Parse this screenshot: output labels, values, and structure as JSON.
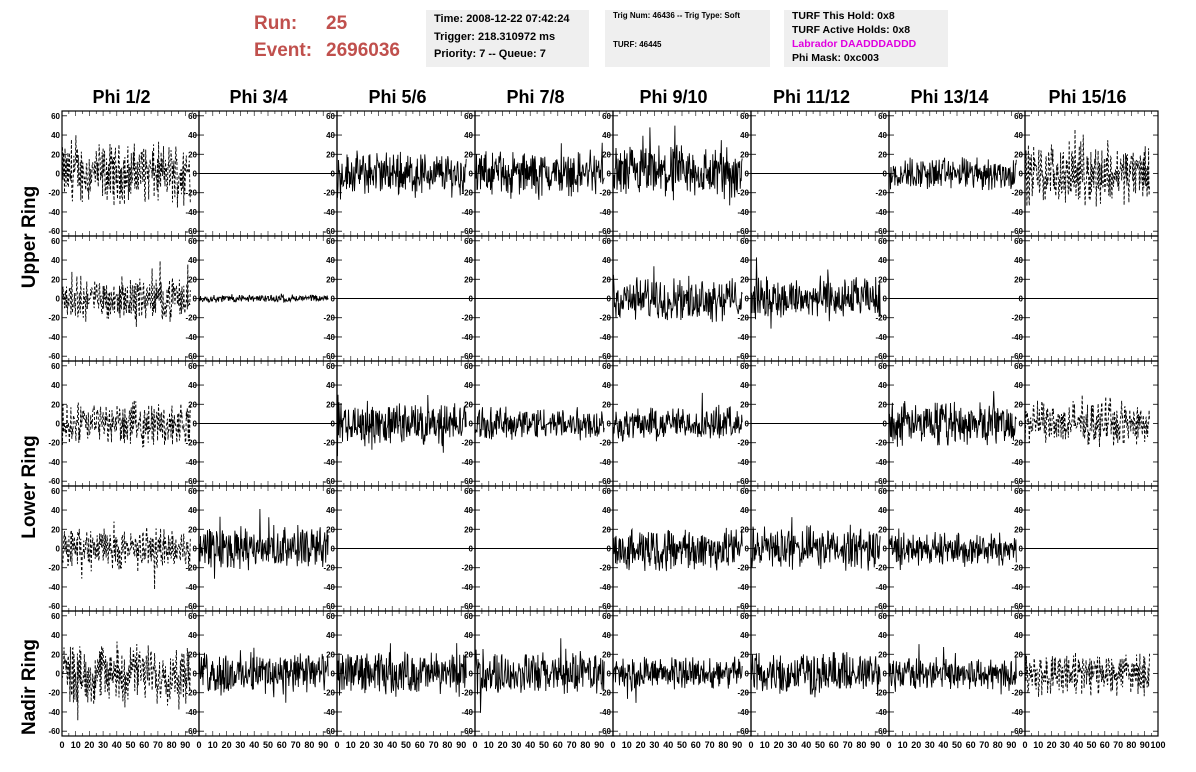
{
  "header": {
    "run_label": "Run:",
    "run_value": "25",
    "event_label": "Event:",
    "event_value": "2696036"
  },
  "info_box_1": {
    "time": "Time: 2008-12-22 07:42:24",
    "trigger": "Trigger: 218.310972 ms",
    "priority": "Priority: 7 -- Queue: 7"
  },
  "info_box_2": {
    "trig": "Trig Num: 46436 -- Trig Type: Soft",
    "turf": "TURF: 46445"
  },
  "info_box_3": {
    "hold": "TURF This Hold: 0x8",
    "active": "TURF Active Holds: 0x8",
    "labrador": "Labrador DAADDDADDD",
    "mask": "Phi Mask: 0xc003",
    "labrador_color": "#e000e0"
  },
  "columns": [
    "Phi 1/2",
    "Phi 3/4",
    "Phi 5/6",
    "Phi 7/8",
    "Phi 9/10",
    "Phi 11/12",
    "Phi 13/14",
    "Phi 15/16"
  ],
  "rings": [
    "Upper Ring",
    "Lower Ring",
    "Nadir Ring"
  ],
  "chart_data": {
    "type": "line",
    "layout": "grid of 5 rows x 8 columns of waveform panels",
    "xlim": [
      0,
      100
    ],
    "ylim": [
      -65,
      65
    ],
    "x_tick_labels": [
      "0",
      "10",
      "20",
      "30",
      "40",
      "50",
      "60",
      "70",
      "80",
      "90",
      "100"
    ],
    "y_tick_labels": [
      "60",
      "40",
      "20",
      "0",
      "-20",
      "-40",
      "-60"
    ],
    "panels": [
      [
        "dashed_large",
        "flat",
        "noise_20",
        "noise_20",
        "noise_25",
        "flat",
        "noise_15",
        "dashed_large"
      ],
      [
        "dashed_medium",
        "noise_small",
        "flat",
        "flat",
        "noise_20",
        "noise_20",
        "flat",
        "flat"
      ],
      [
        "dashed_medium",
        "flat",
        "noise_20",
        "noise_15",
        "noise_15",
        "flat",
        "noise_20",
        "dashed_medium"
      ],
      [
        "dashed_medium",
        "noise_20",
        "flat",
        "flat",
        "noise_20",
        "noise_20",
        "noise_15",
        "flat"
      ],
      [
        "dashed_large",
        "noise_20",
        "noise_20",
        "noise_20",
        "noise_15",
        "noise_20",
        "noise_15",
        "dashed_medium"
      ]
    ]
  }
}
